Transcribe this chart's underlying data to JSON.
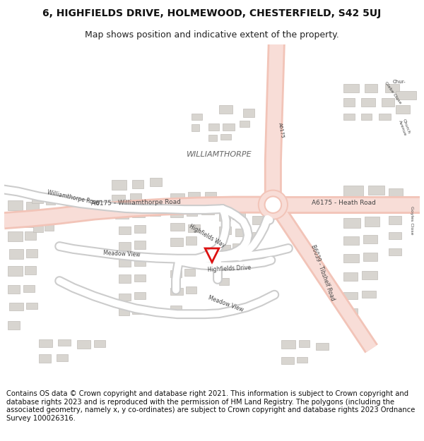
{
  "title_line1": "6, HIGHFIELDS DRIVE, HOLMEWOOD, CHESTERFIELD, S42 5UJ",
  "title_line2": "Map shows position and indicative extent of the property.",
  "footer": "Contains OS data © Crown copyright and database right 2021. This information is subject to Crown copyright and database rights 2023 and is reproduced with the permission of HM Land Registry. The polygons (including the associated geometry, namely x, y co-ordinates) are subject to Crown copyright and database rights 2023 Ordnance Survey 100026316.",
  "bg_color": "#ffffff",
  "map_bg": "#ffffff",
  "road_main_color": "#f2c4b8",
  "road_main_fill": "#f8ddd7",
  "road_minor_color": "#cccccc",
  "road_minor_fill": "#ffffff",
  "building_color": "#d8d5d0",
  "building_edge": "#c0bdb8",
  "highlight_color": "#dd1111",
  "roundabout_fill": "#ffffff",
  "roundabout_edge": "#f2c4b8",
  "label_color": "#444444",
  "title_fontsize": 10,
  "subtitle_fontsize": 9,
  "footer_fontsize": 7.2
}
